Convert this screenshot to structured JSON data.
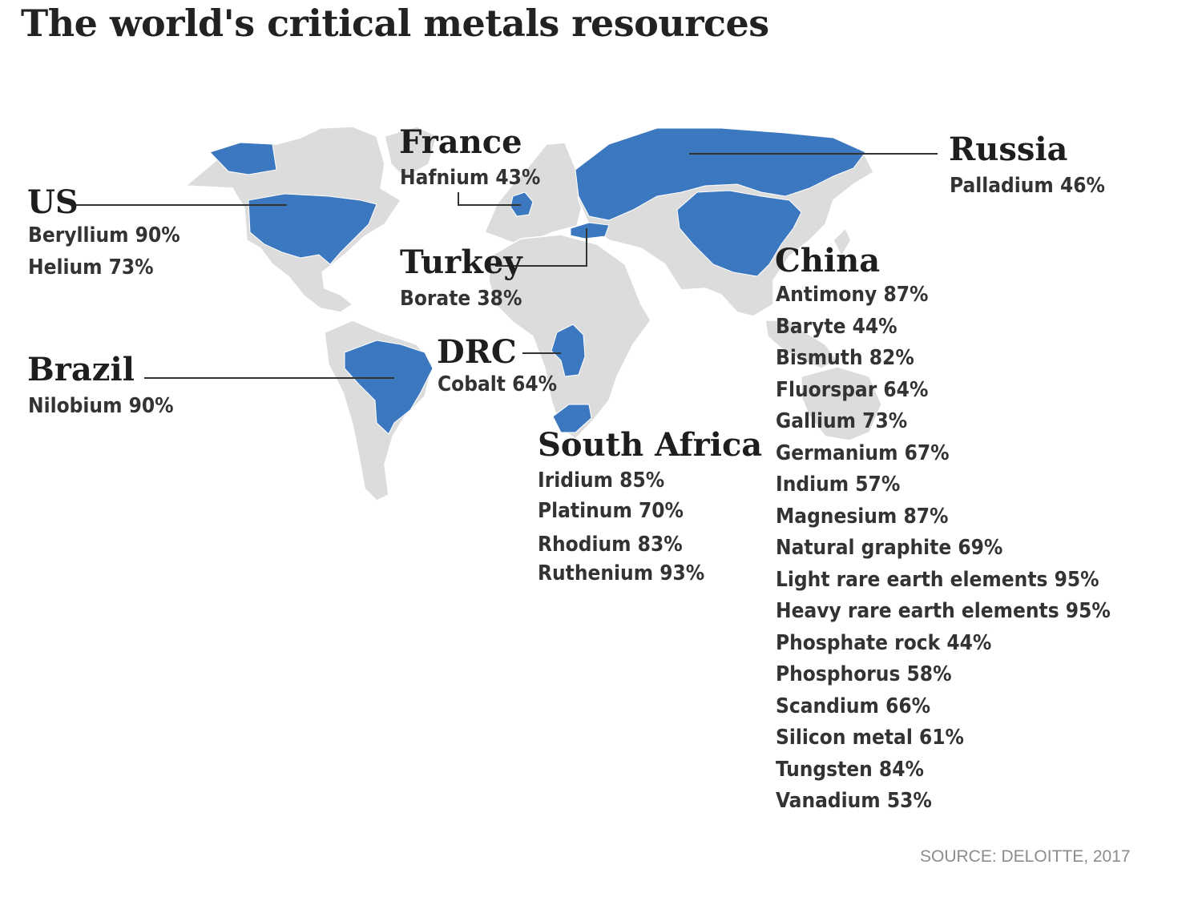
{
  "title": "The world's critical metals resources",
  "highlight_color": "#3b78c0",
  "land_color": "#dcdcdc",
  "source": "SOURCE: DELOITTE, 2017",
  "countries": [
    {
      "key": "us",
      "name": "US",
      "items": [
        "Beryllium 90%",
        "Helium 73%"
      ]
    },
    {
      "key": "france",
      "name": "France",
      "items": [
        "Hafnium 43%"
      ]
    },
    {
      "key": "russia",
      "name": "Russia",
      "items": [
        "Palladium 46%"
      ]
    },
    {
      "key": "turkey",
      "name": "Turkey",
      "items": [
        "Borate 38%"
      ]
    },
    {
      "key": "china",
      "name": "China",
      "items": [
        "Antimony 87%",
        "Baryte 44%",
        "Bismuth 82%",
        "Fluorspar 64%",
        "Gallium 73%",
        "Germanium 67%",
        "Indium 57%",
        "Magnesium 87%",
        "Natural graphite 69%",
        "Light rare earth elements 95%",
        "Heavy rare earth elements 95%",
        "Phosphate rock 44%",
        "Phosphorus 58%",
        "Scandium 66%",
        "Silicon metal 61%",
        "Tungsten 84%",
        "Vanadium 53%"
      ]
    },
    {
      "key": "brazil",
      "name": "Brazil",
      "items": [
        "Nilobium 90%"
      ]
    },
    {
      "key": "drc",
      "name": "DRC",
      "items": [
        "Cobalt 64%"
      ]
    },
    {
      "key": "south_africa",
      "name": "South Africa",
      "items": [
        "Iridium 85%",
        "Platinum 70%",
        "Rhodium 83%",
        "Ruthenium 93%"
      ]
    }
  ]
}
